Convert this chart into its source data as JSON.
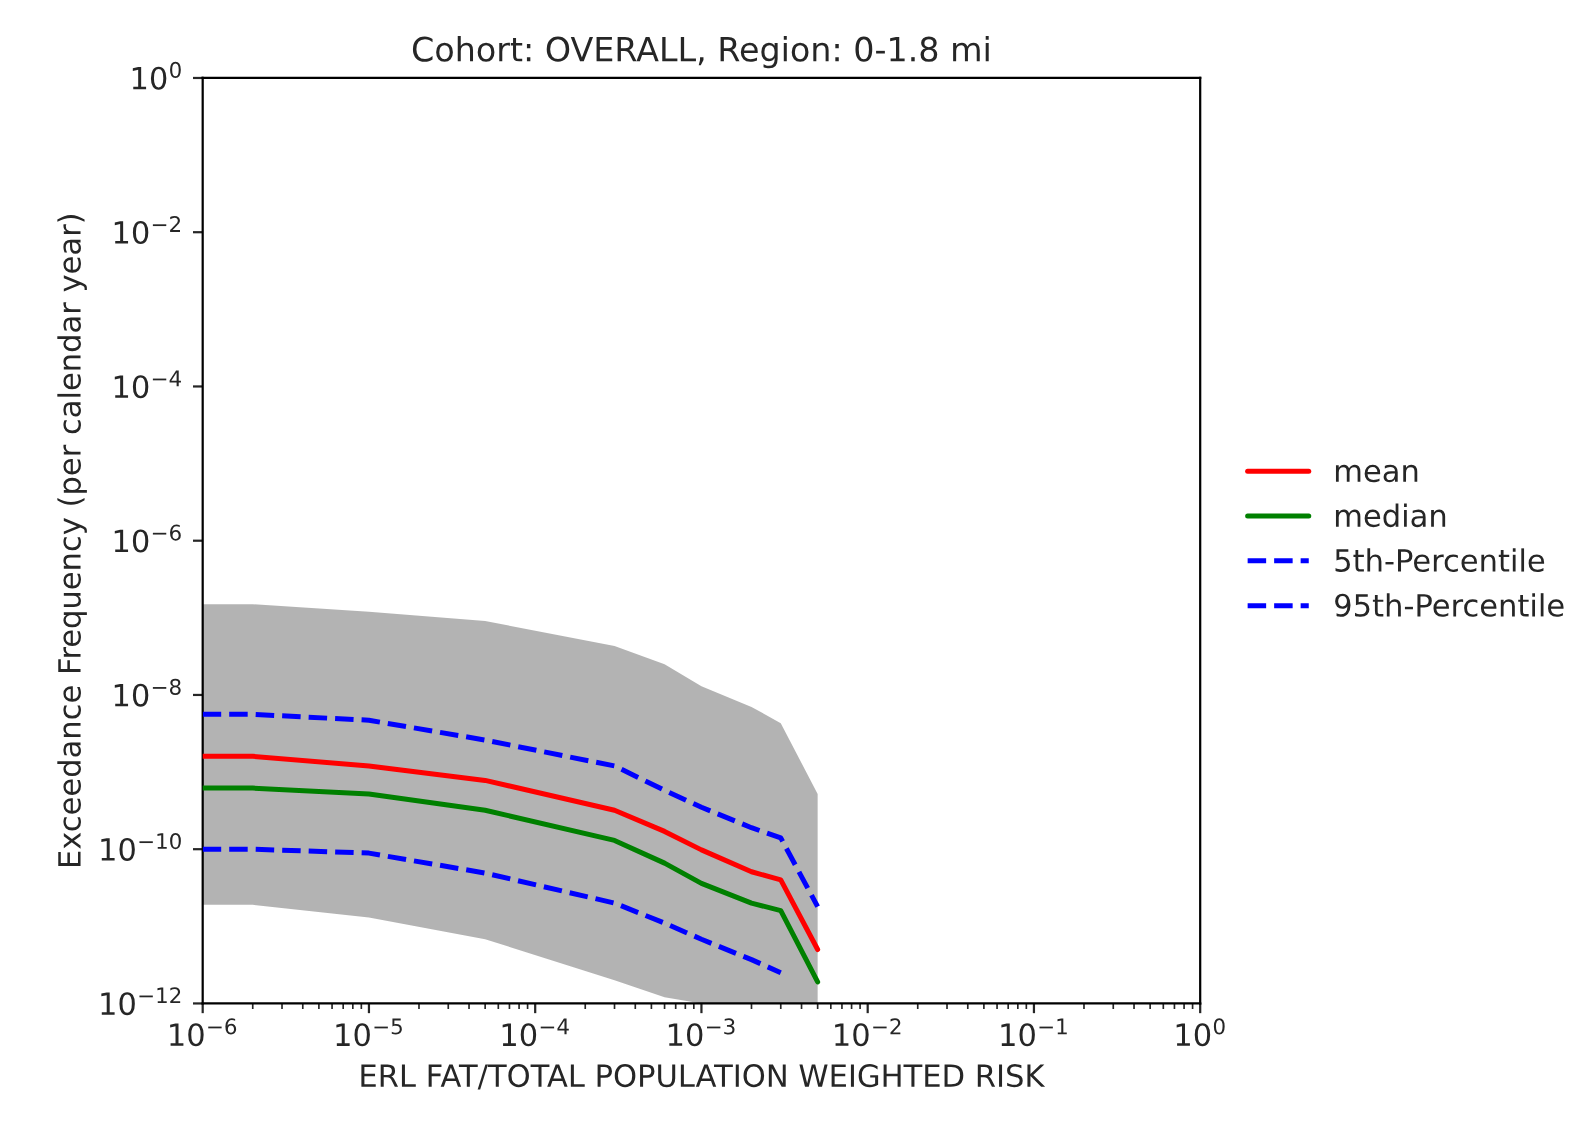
{
  "chart_data": {
    "type": "line",
    "title": "Cohort: OVERALL, Region: 0-1.8 mi",
    "xlabel": "ERL FAT/TOTAL POPULATION WEIGHTED RISK",
    "ylabel": "Exceedance Frequency (per calendar year)",
    "log": "xy",
    "grid": false,
    "legend": "right",
    "xlim": [
      1e-06,
      1
    ],
    "ylim": [
      1e-12,
      1
    ],
    "xticks": [
      {
        "value": 1e-06,
        "label": "10$^{−6}$"
      },
      {
        "value": 1e-05,
        "label": "10$^{−5}$"
      },
      {
        "value": 0.0001,
        "label": "10$^{−4}$"
      },
      {
        "value": 0.001,
        "label": "10$^{−3}$"
      },
      {
        "value": 0.01,
        "label": "10$^{−2}$"
      },
      {
        "value": 0.1,
        "label": "10$^{−1}$"
      },
      {
        "value": 1,
        "label": "10$^{0}$"
      }
    ],
    "yticks": [
      {
        "value": 1e-12,
        "label": "10$^{−12}$"
      },
      {
        "value": 1e-10,
        "label": "10$^{−10}$"
      },
      {
        "value": 1e-08,
        "label": "10$^{−8}$"
      },
      {
        "value": 1e-06,
        "label": "10$^{−6}$"
      },
      {
        "value": 0.0001,
        "label": "10$^{−4}$"
      },
      {
        "value": 0.01,
        "label": "10$^{−2}$"
      },
      {
        "value": 1,
        "label": "10$^{0}$"
      }
    ],
    "x": [
      1e-06,
      2e-06,
      1e-05,
      5e-05,
      0.0003,
      0.0006,
      0.001,
      0.002,
      0.003,
      0.005
    ],
    "series": [
      {
        "color": "#808080",
        "values": [
          null,
          null,
          null,
          null,
          null,
          null,
          null,
          null,
          null,
          null
        ],
        "lower": [
          1.9e-11,
          1.9e-11,
          1.3e-11,
          6.8e-12,
          2e-12,
          1.2e-12,
          1e-12,
          1e-12,
          1e-12,
          1e-12
        ],
        "upper": [
          1.5e-07,
          1.5e-07,
          1.2e-07,
          9.1e-08,
          4.3e-08,
          2.5e-08,
          1.3e-08,
          7e-09,
          4.3e-09,
          5.2e-10
        ]
      },
      {
        "name": "mean",
        "color": "#ff0000",
        "line_style": "solid",
        "values": [
          1.6e-09,
          1.6e-09,
          1.2e-09,
          7.8e-10,
          3.2e-10,
          1.7e-10,
          9.8e-11,
          5.1e-11,
          4e-11,
          5e-12
        ]
      },
      {
        "name": "median",
        "color": "#008000",
        "line_style": "solid",
        "values": [
          6.2e-10,
          6.2e-10,
          5.2e-10,
          3.2e-10,
          1.3e-10,
          6.6e-11,
          3.6e-11,
          2e-11,
          1.6e-11,
          1.9e-12
        ]
      },
      {
        "name": "5th-Percentile",
        "color": "#0000ff",
        "line_style": "dashed",
        "values": [
          5.6e-09,
          5.6e-09,
          4.7e-09,
          2.6e-09,
          1.2e-09,
          5.8e-10,
          3.5e-10,
          1.9e-10,
          1.4e-10,
          1.8e-11
        ]
      },
      {
        "name": "95th-Percentile",
        "color": "#0000ff",
        "line_style": "dashed",
        "values": [
          1e-10,
          1e-10,
          8.9e-11,
          4.9e-11,
          2e-11,
          1.1e-11,
          6.8e-12,
          3.7e-12,
          2.5e-12,
          null
        ]
      }
    ]
  }
}
